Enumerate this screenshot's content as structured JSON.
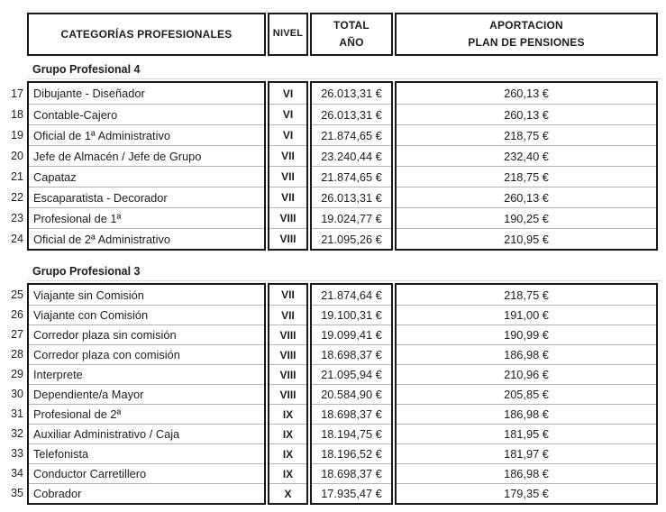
{
  "header": {
    "categories": "CATEGORÍAS PROFESIONALES",
    "level": "NIVEL",
    "total_line1": "TOTAL",
    "total_line2": "AÑO",
    "contribution_line1": "APORTACION",
    "contribution_line2": "PLAN DE PENSIONES"
  },
  "groups": [
    {
      "title": "Grupo Profesional 4",
      "rows": [
        {
          "num": "17",
          "category": "Dibujante - Diseñador",
          "level": "VI",
          "total": "26.013,31 €",
          "contribution": "260,13 €"
        },
        {
          "num": "18",
          "category": "Contable-Cajero",
          "level": "VI",
          "total": "26.013,31 €",
          "contribution": "260,13 €"
        },
        {
          "num": "19",
          "category": "Oficial de 1ª Administrativo",
          "level": "VI",
          "total": "21.874,65 €",
          "contribution": "218,75 €"
        },
        {
          "num": "20",
          "category": "Jefe de Almacén / Jefe de Grupo",
          "level": "VII",
          "total": "23.240,44 €",
          "contribution": "232,40 €"
        },
        {
          "num": "21",
          "category": "Capataz",
          "level": "VII",
          "total": "21.874,65 €",
          "contribution": "218,75 €"
        },
        {
          "num": "22",
          "category": "Escaparatista - Decorador",
          "level": "VII",
          "total": "26.013,31 €",
          "contribution": "260,13 €"
        },
        {
          "num": "23",
          "category": "Profesional de 1ª",
          "level": "VIII",
          "total": "19.024,77 €",
          "contribution": "190,25 €"
        },
        {
          "num": "24",
          "category": "Oficial de 2ª Administrativo",
          "level": "VIII",
          "total": "21.095,26 €",
          "contribution": "210,95 €"
        }
      ]
    },
    {
      "title": "Grupo Profesional 3",
      "rows": [
        {
          "num": "25",
          "category": "Viajante sin Comisión",
          "level": "VII",
          "total": "21.874,64 €",
          "contribution": "218,75 €"
        },
        {
          "num": "26",
          "category": "Viajante con Comisión",
          "level": "VII",
          "total": "19.100,31 €",
          "contribution": "191,00 €"
        },
        {
          "num": "27",
          "category": "Corredor plaza sin comisión",
          "level": "VIII",
          "total": "19.099,41 €",
          "contribution": "190,99 €"
        },
        {
          "num": "28",
          "category": "Corredor plaza con comisión",
          "level": "VIII",
          "total": "18.698,37 €",
          "contribution": "186,98 €"
        },
        {
          "num": "29",
          "category": "Interprete",
          "level": "VIII",
          "total": "21.095,94 €",
          "contribution": "210,96 €"
        },
        {
          "num": "30",
          "category": "Dependiente/a Mayor",
          "level": "VIII",
          "total": "20.584,90 €",
          "contribution": "205,85 €"
        },
        {
          "num": "31",
          "category": "Profesional de 2ª",
          "level": "IX",
          "total": "18.698,37 €",
          "contribution": "186,98 €"
        },
        {
          "num": "32",
          "category": "Auxiliar Administrativo / Caja",
          "level": "IX",
          "total": "18.194,75 €",
          "contribution": "181,95 €"
        },
        {
          "num": "33",
          "category": "Telefonista",
          "level": "IX",
          "total": "18.196,52 €",
          "contribution": "181,97 €"
        },
        {
          "num": "34",
          "category": "Conductor Carretillero",
          "level": "IX",
          "total": "18.698,37 €",
          "contribution": "186,98 €"
        },
        {
          "num": "35",
          "category": "Cobrador",
          "level": "X",
          "total": "17.935,47 €",
          "contribution": "179,35 €"
        }
      ]
    }
  ]
}
